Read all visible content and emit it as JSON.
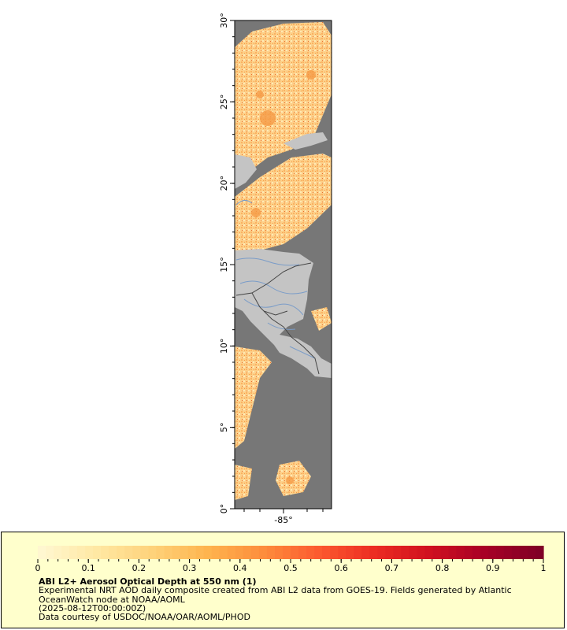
{
  "map": {
    "lat_ticks": [
      "0°",
      "5°",
      "10°",
      "15°",
      "20°",
      "25°",
      "30°"
    ],
    "lon_ticks": [
      "-85°"
    ],
    "colors": {
      "ocean_nodata": "#777777",
      "land_nodata": "#c4c4c4",
      "rivers": "#7a9cc8",
      "borders": "#444444"
    }
  },
  "legend": {
    "ticks": [
      "0",
      "0.1",
      "0.2",
      "0.3",
      "0.4",
      "0.5",
      "0.6",
      "0.7",
      "0.8",
      "0.9",
      "1"
    ],
    "colorscale": [
      "#fff7d0",
      "#ffe8a3",
      "#fed27a",
      "#feb44e",
      "#fd8d3c",
      "#fc5b2f",
      "#ec2d22",
      "#d0111f",
      "#a80026",
      "#800026"
    ],
    "title": "ABI L2+ Aerosol Optical Depth at 550 nm (1)",
    "line1": "Experimental NRT AOD daily composite created from ABI L2 data from GOES-19. Fields generated by Atlantic OceanWatch node at NOAA/AOML",
    "line2": "(2025-08-12T00:00:00Z)",
    "credit": "Data courtesy of USDOC/NOAA/OAR/AOML/PHOD"
  }
}
